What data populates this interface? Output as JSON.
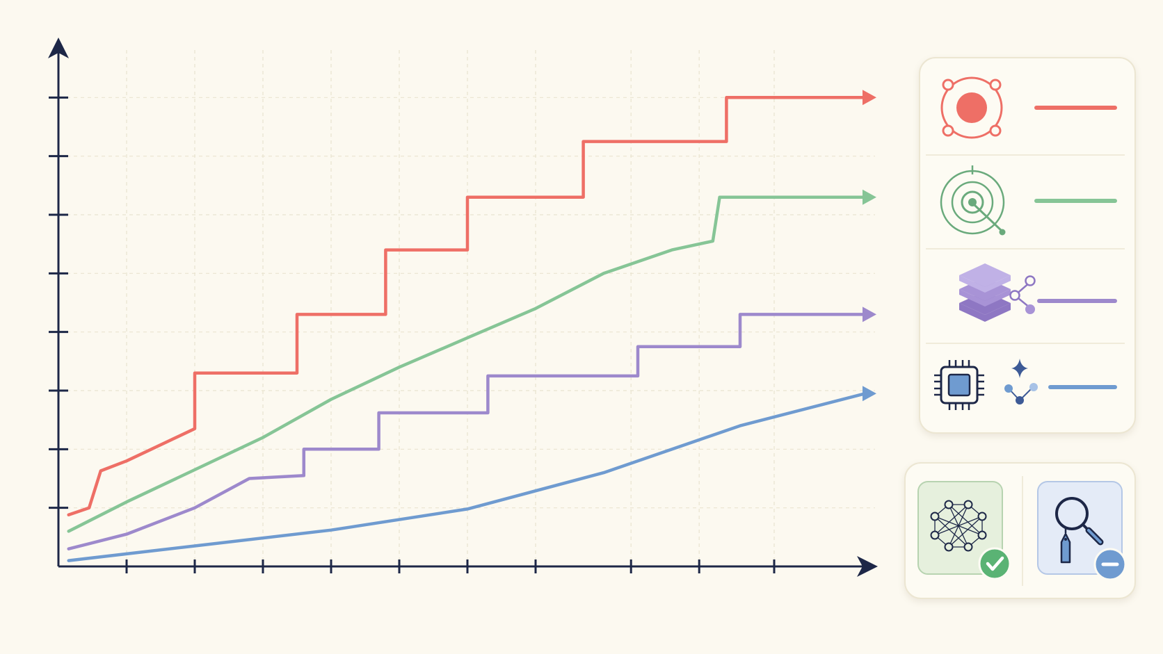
{
  "chart_data": {
    "type": "line",
    "title": "",
    "xlabel": "",
    "ylabel": "",
    "grid": true,
    "legend": "right",
    "xlim": [
      0,
      12
    ],
    "ylim": [
      0,
      9
    ],
    "x_ticks": [
      1,
      2,
      3,
      4,
      5,
      6,
      7,
      8.4,
      9.4,
      10.5
    ],
    "y_ticks": [
      1,
      2,
      3,
      4,
      5,
      6,
      7,
      8
    ],
    "series": [
      {
        "color": "#ee6f66",
        "legend_icon": "target-node-icon",
        "points": [
          [
            0.15,
            0.88
          ],
          [
            0.45,
            1.0
          ],
          [
            0.62,
            1.63
          ],
          [
            1.0,
            1.8
          ],
          [
            2.0,
            2.35
          ],
          [
            2.0,
            3.3
          ],
          [
            3.5,
            3.3
          ],
          [
            3.5,
            4.3
          ],
          [
            4.8,
            4.3
          ],
          [
            4.8,
            5.4
          ],
          [
            6.0,
            5.4
          ],
          [
            6.0,
            6.3
          ],
          [
            7.7,
            6.3
          ],
          [
            7.7,
            7.25
          ],
          [
            9.8,
            7.25
          ],
          [
            9.8,
            8.0
          ],
          [
            12.0,
            8.0
          ]
        ]
      },
      {
        "color": "#86c596",
        "legend_icon": "radar-target-icon",
        "points": [
          [
            0.15,
            0.6
          ],
          [
            1.0,
            1.1
          ],
          [
            2.0,
            1.65
          ],
          [
            3.0,
            2.2
          ],
          [
            4.0,
            2.85
          ],
          [
            5.0,
            3.4
          ],
          [
            6.0,
            3.9
          ],
          [
            7.0,
            4.4
          ],
          [
            8.0,
            5.0
          ],
          [
            9.0,
            5.4
          ],
          [
            9.6,
            5.55
          ],
          [
            9.7,
            6.3
          ],
          [
            12.0,
            6.3
          ]
        ]
      },
      {
        "color": "#9d89cc",
        "legend_icon": "layered-stack-icon",
        "points": [
          [
            0.15,
            0.3
          ],
          [
            1.0,
            0.55
          ],
          [
            2.0,
            1.0
          ],
          [
            2.8,
            1.5
          ],
          [
            3.6,
            1.55
          ],
          [
            3.6,
            2.0
          ],
          [
            4.7,
            2.0
          ],
          [
            4.7,
            2.62
          ],
          [
            6.3,
            2.62
          ],
          [
            6.3,
            3.25
          ],
          [
            8.5,
            3.25
          ],
          [
            8.5,
            3.75
          ],
          [
            10.0,
            3.75
          ],
          [
            10.0,
            4.3
          ],
          [
            12.0,
            4.3
          ]
        ]
      },
      {
        "color": "#6f9bd0",
        "legend_icon": "chip-network-icon",
        "points": [
          [
            0.15,
            0.1
          ],
          [
            2.0,
            0.35
          ],
          [
            4.0,
            0.62
          ],
          [
            6.0,
            0.98
          ],
          [
            8.0,
            1.6
          ],
          [
            10.0,
            2.4
          ],
          [
            12.0,
            2.95
          ]
        ]
      }
    ],
    "status_cards": [
      {
        "icon": "neural-network-icon",
        "badge": "check-badge-icon",
        "badge_color": "#5ab374",
        "tint": "#e6f0dd"
      },
      {
        "icon": "search-tag-icon",
        "badge": "minus-badge-icon",
        "badge_color": "#6f9bd0",
        "tint": "#e4ebf7"
      }
    ]
  }
}
